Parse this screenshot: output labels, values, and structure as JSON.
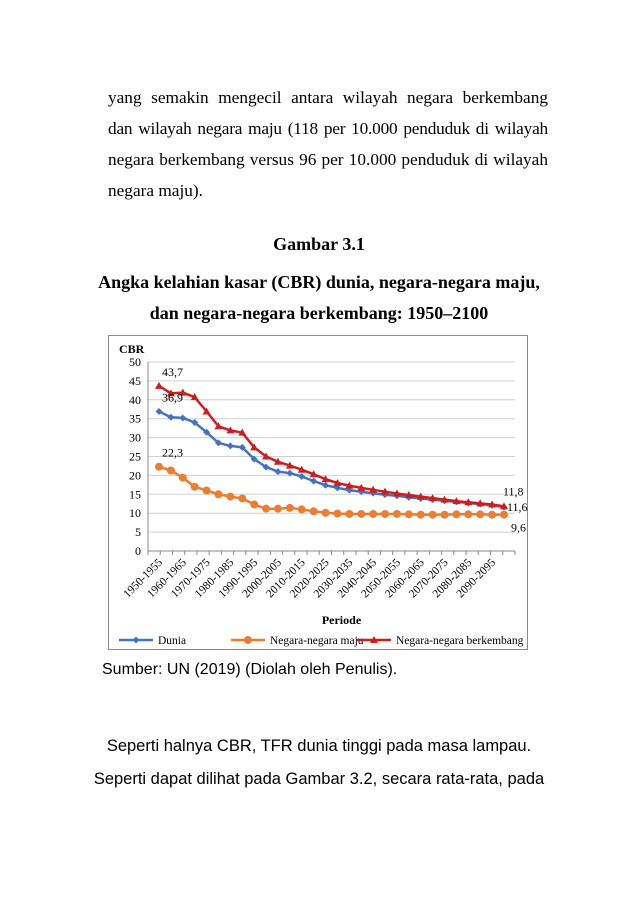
{
  "paragraph1": [
    "yang semakin mengecil antara wilayah negara berkembang",
    "dan wilayah negara maju (118 per 10.000 penduduk di wilayah",
    "negara berkembang versus 96 per 10.000 penduduk di wilayah",
    "negara maju)."
  ],
  "figure": {
    "label": "Gambar 3.1",
    "title_lines": [
      "Angka kelahian kasar (CBR) dunia, negara-negara maju,",
      "dan negara-negara berkembang: 1950–2100"
    ]
  },
  "chart_data": {
    "type": "line",
    "ylabel": "CBR",
    "xlabel": "Periode",
    "ylim": [
      0,
      50
    ],
    "yticks": [
      "0",
      "5",
      "10",
      "15",
      "20",
      "25",
      "30",
      "35",
      "40",
      "45",
      "50"
    ],
    "grid": "horizontal",
    "legend_position": "bottom",
    "x": [
      "1950-1955",
      "1955-1960",
      "1960-1965",
      "1965-1970",
      "1970-1975",
      "1975-1980",
      "1980-1985",
      "1985-1990",
      "1990-1995",
      "1995-2000",
      "2000-2005",
      "2005-2010",
      "2010-2015",
      "2015-2020",
      "2020-2025",
      "2025-2030",
      "2030-2035",
      "2035-2040",
      "2040-2045",
      "2045-2050",
      "2050-2055",
      "2055-2060",
      "2060-2065",
      "2065-2070",
      "2070-2075",
      "2075-2080",
      "2080-2085",
      "2085-2090",
      "2090-2095",
      "2095-2100"
    ],
    "x_tick_labels": [
      "1950-1955",
      "1960-1965",
      "1970-1975",
      "1980-1985",
      "1990-1995",
      "2000-2005",
      "2010-2015",
      "2020-2025",
      "2030-2035",
      "2040-2045",
      "2050-2055",
      "2060-2065",
      "2070-2075",
      "2080-2085",
      "2090-2095"
    ],
    "series": [
      {
        "name": "Dunia",
        "color": "#4472c4",
        "marker": "diamond",
        "values": [
          36.9,
          35.4,
          35.2,
          34.0,
          31.4,
          28.6,
          27.8,
          27.4,
          24.3,
          22.2,
          21.0,
          20.6,
          19.7,
          18.5,
          17.4,
          16.7,
          16.1,
          15.7,
          15.3,
          14.9,
          14.6,
          14.2,
          13.9,
          13.6,
          13.3,
          13.0,
          12.7,
          12.4,
          12.1,
          11.6
        ]
      },
      {
        "name": "Negara-negara maju",
        "color": "#ed7d31",
        "marker": "circle",
        "values": [
          22.3,
          21.3,
          19.4,
          17.0,
          16.0,
          15.0,
          14.4,
          13.9,
          12.3,
          11.2,
          11.2,
          11.4,
          11.0,
          10.5,
          10.1,
          9.9,
          9.8,
          9.8,
          9.8,
          9.8,
          9.8,
          9.7,
          9.6,
          9.6,
          9.6,
          9.7,
          9.7,
          9.7,
          9.6,
          9.6
        ]
      },
      {
        "name": "Negara-negara berkembang",
        "color": "#cc1f1f",
        "marker": "triangle",
        "values": [
          43.7,
          41.7,
          41.9,
          40.7,
          36.9,
          33.0,
          31.9,
          31.3,
          27.4,
          25.0,
          23.6,
          22.6,
          21.5,
          20.3,
          19.0,
          18.0,
          17.3,
          16.7,
          16.2,
          15.7,
          15.2,
          14.8,
          14.4,
          14.0,
          13.6,
          13.2,
          12.9,
          12.6,
          12.3,
          11.8
        ]
      }
    ],
    "data_labels": [
      {
        "series": 2,
        "index": 0,
        "text": "43,7"
      },
      {
        "series": 0,
        "index": 0,
        "text": "36,9"
      },
      {
        "series": 1,
        "index": 0,
        "text": "22,3"
      },
      {
        "series": 2,
        "index": 29,
        "text": "11,8"
      },
      {
        "series": 0,
        "index": 29,
        "text": "11,6"
      },
      {
        "series": 1,
        "index": 29,
        "text": "9,6"
      }
    ]
  },
  "source": "Sumber: UN (2019) (Diolah oleh Penulis).",
  "paragraph2": [
    "Seperti halnya CBR, TFR dunia tinggi pada masa lampau.",
    "Seperti dapat dilihat pada Gambar 3.2, secara rata-rata, pada"
  ]
}
